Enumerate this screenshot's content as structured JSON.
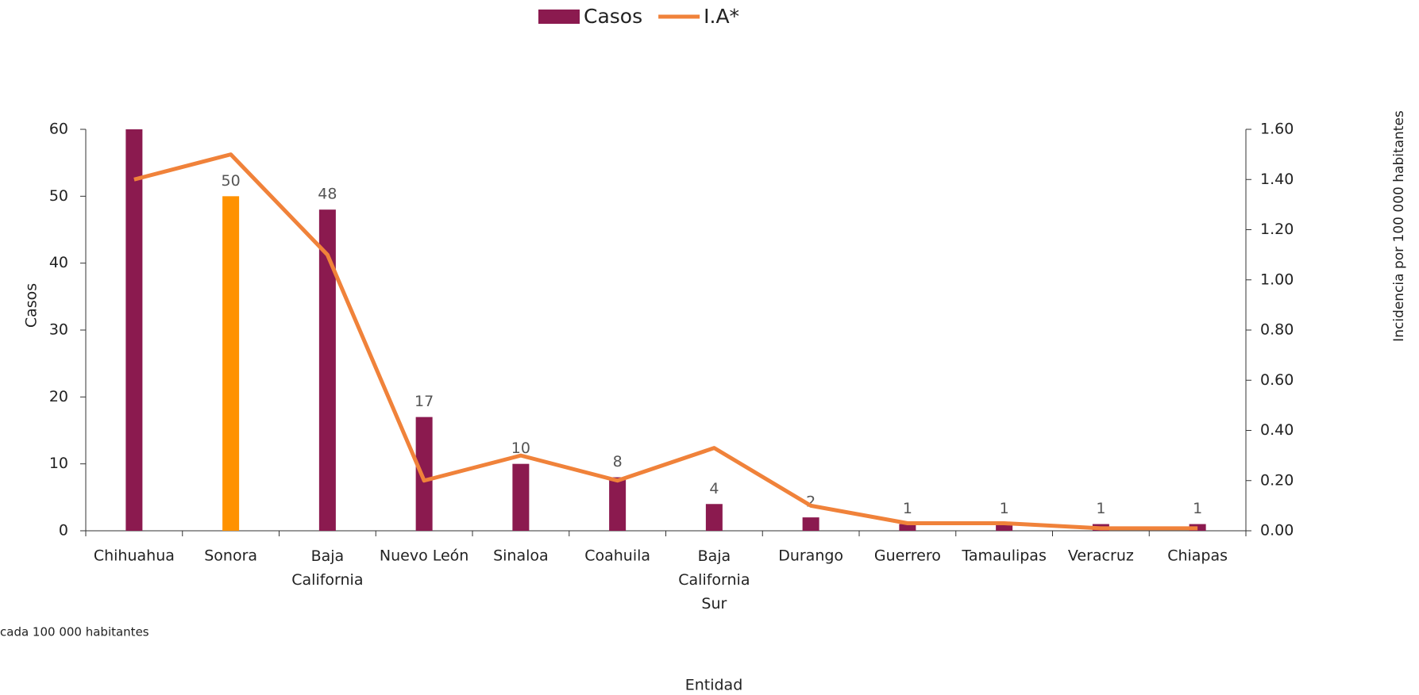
{
  "chart_data": {
    "type": "bar-line",
    "x_label": "Entidad",
    "y_label": "Casos",
    "y2_label": "Incidencia por 100 000 habitantes",
    "footnote": "cada 100 000 habitantes",
    "categories": [
      "Chihuahua",
      "Sonora",
      "Baja California",
      "Nuevo León",
      "Sinaloa",
      "Coahuila",
      "Baja California Sur",
      "Durango",
      "Guerrero",
      "Tamaulipas",
      "Veracruz",
      "Chiapas"
    ],
    "series": [
      {
        "name": "Casos",
        "type": "bar",
        "color": "#8B1A4F",
        "colors": [
          "#8B1A4F",
          "#FF9200",
          "#8B1A4F",
          "#8B1A4F",
          "#8B1A4F",
          "#8B1A4F",
          "#8B1A4F",
          "#8B1A4F",
          "#8B1A4F",
          "#8B1A4F",
          "#8B1A4F",
          "#8B1A4F"
        ],
        "values": [
          60,
          50,
          48,
          17,
          10,
          8,
          4,
          2,
          1,
          1,
          1,
          1
        ],
        "value_labels": [
          null,
          "50",
          "48",
          "17",
          "10",
          "8",
          "4",
          "2",
          "1",
          "1",
          "1",
          "1"
        ]
      },
      {
        "name": "I.A*",
        "type": "line",
        "axis": "y2",
        "color": "#F0823A",
        "values": [
          1.4,
          1.5,
          1.1,
          0.2,
          0.3,
          0.2,
          0.33,
          0.1,
          0.03,
          0.03,
          0.01,
          0.01
        ]
      }
    ],
    "ylim": [
      0,
      60
    ],
    "yticks": [
      0,
      10,
      20,
      30,
      40,
      50,
      60
    ],
    "y2lim": [
      0,
      1.6
    ],
    "y2ticks": [
      {
        "value": 0,
        "label": "0.00"
      },
      {
        "value": 0.2,
        "label": "0.20"
      },
      {
        "value": 0.4,
        "label": "0.40"
      },
      {
        "value": 0.6,
        "label": "0.60"
      },
      {
        "value": 0.8,
        "label": "0.80"
      },
      {
        "value": 1.0,
        "label": "1.00"
      },
      {
        "value": 1.2,
        "label": "1.20"
      },
      {
        "value": 1.4,
        "label": "1.40"
      },
      {
        "value": 1.6,
        "label": "1.60"
      }
    ],
    "legend": "top"
  }
}
